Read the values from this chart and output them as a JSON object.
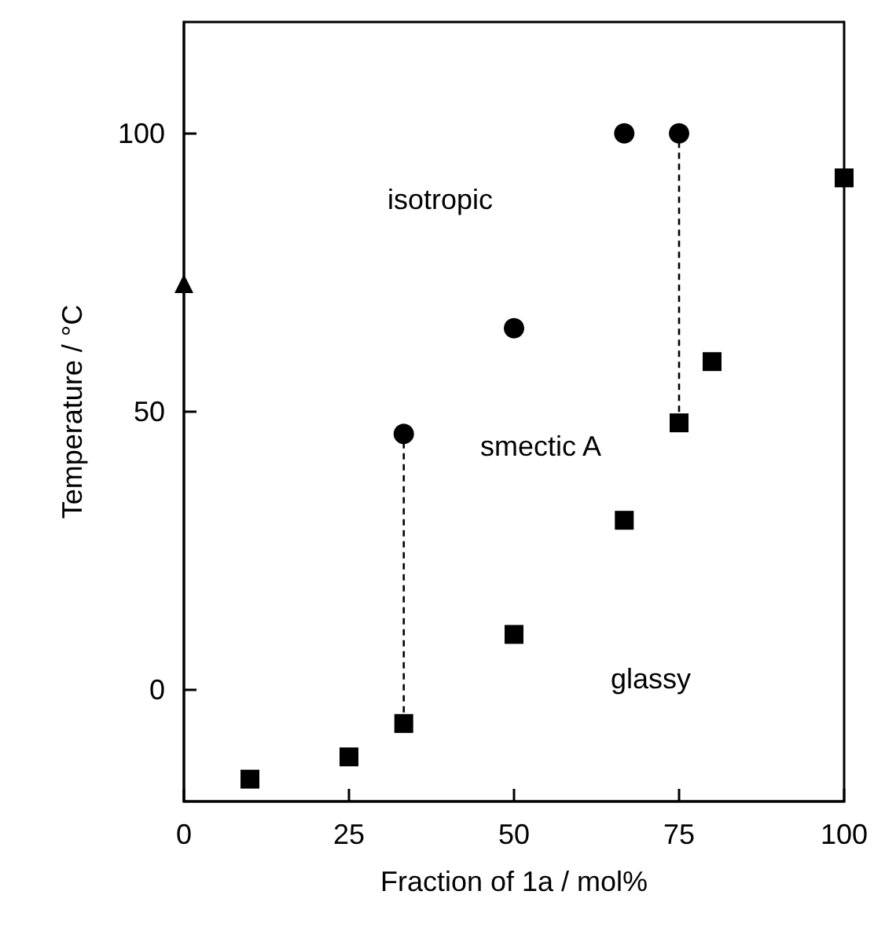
{
  "chart_data": {
    "type": "scatter",
    "xlabel": "Fraction of 1a / mol%",
    "ylabel": "Temperature / °C",
    "xlim": [
      0,
      100
    ],
    "xticks": [
      0,
      25,
      50,
      75,
      100
    ],
    "ylim": [
      -20,
      120
    ],
    "yticks": [
      0,
      50,
      100
    ],
    "grid": false,
    "series": [
      {
        "marker": "square",
        "color": "#000000",
        "x": [
          10,
          25,
          33.3,
          50,
          66.7,
          75,
          80,
          100
        ],
        "values": [
          -16,
          -12,
          -6,
          10,
          30.5,
          48,
          59,
          92
        ]
      },
      {
        "marker": "circle",
        "color": "#000000",
        "x": [
          33.3,
          50,
          66.7,
          75
        ],
        "values": [
          46,
          65,
          100,
          100
        ]
      },
      {
        "marker": "triangle",
        "color": "#000000",
        "x": [
          0
        ],
        "values": [
          73
        ]
      },
      {
        "type": "line",
        "marker": "none",
        "line_style": "dashed",
        "color": "#000000",
        "x": [
          33.3,
          33.3
        ],
        "values": [
          -6,
          46
        ]
      },
      {
        "type": "line",
        "marker": "none",
        "line_style": "dashed",
        "color": "#000000",
        "x": [
          75,
          75
        ],
        "values": [
          48,
          100
        ]
      }
    ],
    "annotations": [
      "isotropic",
      "smectic A",
      "glassy"
    ]
  }
}
